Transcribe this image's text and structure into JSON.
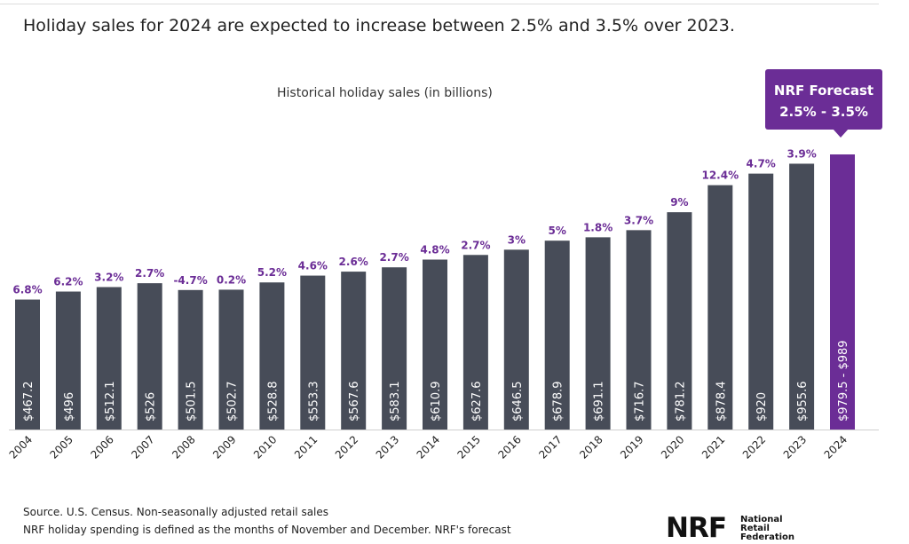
{
  "headline": "Holiday sales for 2024 are expected to increase between 2.5% and 3.5% over 2023.",
  "forecast_box": {
    "title": "NRF Forecast",
    "range": "2.5% - 3.5%"
  },
  "source_lines": [
    "Source. U.S. Census. Non-seasonally adjusted retail sales",
    "NRF holiday spending is defined as the months of November and December. NRF's forecast"
  ],
  "logo": {
    "mark": "NRF",
    "lines": [
      "National",
      "Retail",
      "Federation"
    ]
  },
  "colors": {
    "bar": "#474c58",
    "forecast": "#6b2d96",
    "growth_label": "#6b2d96",
    "bar_label": "#ffffff"
  },
  "chart_data": {
    "type": "bar",
    "title": "Historical holiday sales (in billions)",
    "categories": [
      "2004",
      "2005",
      "2006",
      "2007",
      "2008",
      "2009",
      "2010",
      "2011",
      "2012",
      "2013",
      "2014",
      "2015",
      "2016",
      "2017",
      "2018",
      "2019",
      "2020",
      "2021",
      "2022",
      "2023",
      "2024"
    ],
    "values": [
      467.2,
      496,
      512.1,
      526,
      501.5,
      502.7,
      528.8,
      553.3,
      567.6,
      583.1,
      610.9,
      627.6,
      646.5,
      678.9,
      691.1,
      716.7,
      781.2,
      878.4,
      920,
      955.6,
      989
    ],
    "forecast_low": 979.5,
    "value_labels": [
      "$467.2",
      "$496",
      "$512.1",
      "$526",
      "$501.5",
      "$502.7",
      "$528.8",
      "$553.3",
      "$567.6",
      "$583.1",
      "$610.9",
      "$627.6",
      "$646.5",
      "$678.9",
      "$691.1",
      "$716.7",
      "$781.2",
      "$878.4",
      "$920",
      "$955.6",
      "$979.5 - $989"
    ],
    "growth_labels": [
      "6.8%",
      "6.2%",
      "3.2%",
      "2.7%",
      "-4.7%",
      "0.2%",
      "5.2%",
      "4.6%",
      "2.6%",
      "2.7%",
      "4.8%",
      "2.7%",
      "3%",
      "5%",
      "1.8%",
      "3.7%",
      "9%",
      "12.4%",
      "4.7%",
      "3.9%",
      ""
    ],
    "forecast_category": "2024",
    "grid": false,
    "legend": "none"
  }
}
